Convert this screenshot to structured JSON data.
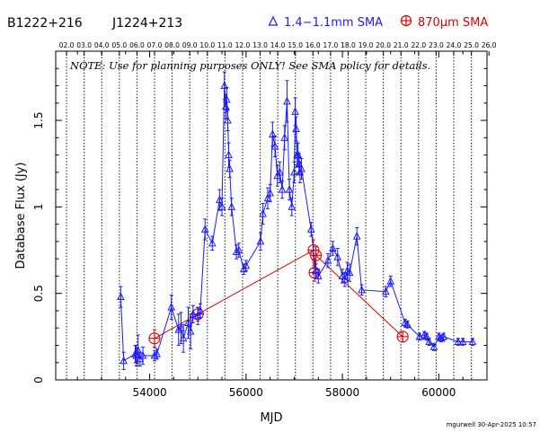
{
  "header": {
    "source_primary": "B1222+216",
    "source_alias": "J1224+213",
    "legend_blue_label": "1.4−1.1mm SMA",
    "legend_red_label": "870μm SMA"
  },
  "note": "NOTE: Use for planning purposes ONLY! See SMA policy for details.",
  "footer": "mgurwell 30-Apr-2025 10:57",
  "colors": {
    "blue": "#1a1aff",
    "red": "#e00000",
    "axis": "#000000"
  },
  "chart_data": {
    "type": "line",
    "title": "",
    "xlabel": "MJD",
    "ylabel": "Database Flux (Jy)",
    "xlim": [
      52050,
      61000
    ],
    "ylim": [
      0,
      1.9
    ],
    "x_ticks": [
      54000,
      56000,
      58000,
      60000
    ],
    "x_tick_labels": [
      "54000",
      "56000",
      "58000",
      "60000"
    ],
    "y_ticks": [
      0,
      0.5,
      1,
      1.5
    ],
    "y_tick_labels": [
      "0",
      "0.5",
      "1",
      "1.5"
    ],
    "top_axis_labels": [
      "02.0",
      "03.0",
      "04.0",
      "05.0",
      "06.0",
      "07.0",
      "08.0",
      "09.0",
      "10.0",
      "11.0",
      "12.0",
      "13.0",
      "14.0",
      "15.0",
      "16.0",
      "17.0",
      "18.0",
      "19.0",
      "20.0",
      "21.0",
      "22.0",
      "23.0",
      "24.0",
      "25.0",
      "26.0"
    ],
    "top_axis_x": [
      52275,
      52640,
      53005,
      53371,
      53736,
      54101,
      54466,
      54832,
      55197,
      55562,
      55927,
      56293,
      56658,
      57023,
      57388,
      57754,
      58119,
      58484,
      58849,
      59215,
      59580,
      59945,
      60310,
      60676,
      61041
    ],
    "series": [
      {
        "name": "1.4−1.1mm SMA",
        "color": "#1a1aff",
        "marker": "triangle",
        "x": [
          53400,
          53460,
          53700,
          53720,
          53760,
          53800,
          53860,
          54100,
          54150,
          54450,
          54600,
          54650,
          54700,
          54800,
          54850,
          54900,
          55000,
          55050,
          55150,
          55300,
          55450,
          55500,
          55550,
          55580,
          55600,
          55620,
          55640,
          55660,
          55700,
          55800,
          55850,
          55950,
          56000,
          56300,
          56350,
          56450,
          56500,
          56550,
          56600,
          56650,
          56700,
          56750,
          56800,
          56850,
          56900,
          56950,
          57000,
          57020,
          57040,
          57060,
          57080,
          57100,
          57120,
          57150,
          57350,
          57450,
          57500,
          57700,
          57800,
          57900,
          58000,
          58050,
          58100,
          58150,
          58300,
          58400,
          58900,
          59000,
          59300,
          59350,
          59600,
          59700,
          59750,
          59800,
          59900,
          60000,
          60050,
          60100,
          60400,
          60500,
          60700
        ],
        "y": [
          0.48,
          0.11,
          0.15,
          0.14,
          0.17,
          0.12,
          0.14,
          0.14,
          0.15,
          0.42,
          0.29,
          0.3,
          0.24,
          0.33,
          0.28,
          0.38,
          0.37,
          0.4,
          0.87,
          0.79,
          1.04,
          1.0,
          1.7,
          1.58,
          1.62,
          1.5,
          1.3,
          1.22,
          1.0,
          0.74,
          0.75,
          0.64,
          0.66,
          0.8,
          0.96,
          1.05,
          1.08,
          1.42,
          1.35,
          1.18,
          1.2,
          1.1,
          1.4,
          1.61,
          1.1,
          1.0,
          1.2,
          1.55,
          1.45,
          1.3,
          1.3,
          1.25,
          1.2,
          1.22,
          0.87,
          0.63,
          0.6,
          0.69,
          0.76,
          0.71,
          0.6,
          0.58,
          0.63,
          0.62,
          0.83,
          0.52,
          0.51,
          0.57,
          0.33,
          0.32,
          0.25,
          0.26,
          0.25,
          0.22,
          0.19,
          0.25,
          0.24,
          0.25,
          0.22,
          0.22,
          0.22
        ],
        "err": [
          0.06,
          0.05,
          0.05,
          0.06,
          0.09,
          0.04,
          0.05,
          0.03,
          0.03,
          0.07,
          0.09,
          0.09,
          0.08,
          0.09,
          0.1,
          0.05,
          0.05,
          0.04,
          0.06,
          0.04,
          0.06,
          0.05,
          0.08,
          0.07,
          0.07,
          0.06,
          0.07,
          0.05,
          0.05,
          0.04,
          0.04,
          0.03,
          0.03,
          0.05,
          0.06,
          0.06,
          0.05,
          0.07,
          0.06,
          0.06,
          0.06,
          0.05,
          0.07,
          0.12,
          0.06,
          0.05,
          0.06,
          0.08,
          0.07,
          0.07,
          0.07,
          0.06,
          0.06,
          0.06,
          0.04,
          0.04,
          0.04,
          0.04,
          0.04,
          0.05,
          0.04,
          0.04,
          0.05,
          0.05,
          0.05,
          0.03,
          0.03,
          0.03,
          0.02,
          0.02,
          0.02,
          0.02,
          0.02,
          0.02,
          0.02,
          0.02,
          0.02,
          0.02,
          0.02,
          0.02,
          0.02
        ]
      },
      {
        "name": "870μm SMA",
        "color": "#e00000",
        "marker": "circle-plus",
        "x": [
          54100,
          55000,
          57400,
          57420,
          57450,
          59250
        ],
        "y": [
          0.24,
          0.38,
          0.75,
          0.62,
          0.72,
          0.25
        ],
        "err": [
          0.05,
          0.04,
          0.06,
          0.05,
          0.05,
          0.03
        ]
      }
    ]
  }
}
